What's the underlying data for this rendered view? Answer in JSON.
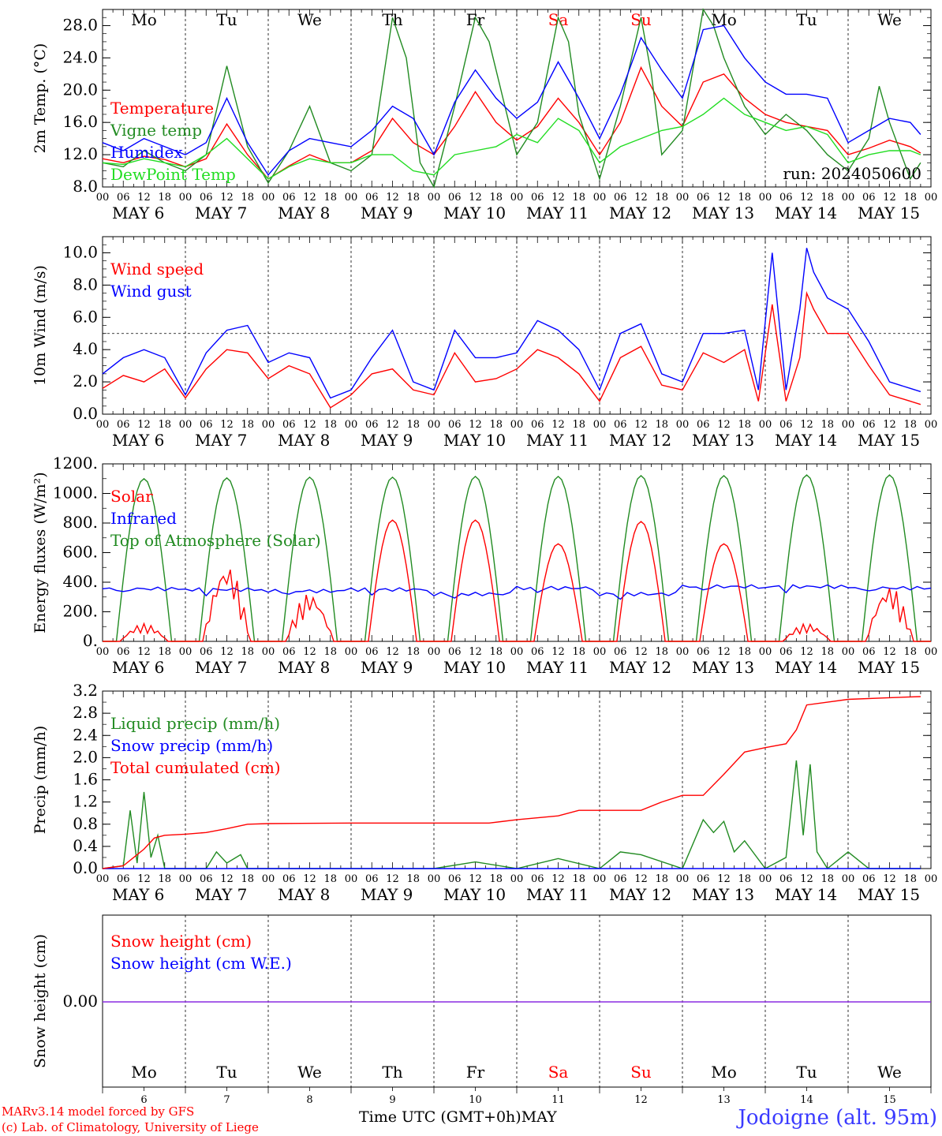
{
  "footer": {
    "model_line": "MARv3.14 model forced by GFS",
    "copyright_line": "(c) Lab. of Climatology, University of Liege",
    "time_label": "Time UTC (GMT+0h)",
    "month_label": "MAY",
    "station": "Jodoigne (alt. 95m)"
  },
  "colors": {
    "red": "#ff0000",
    "dark_green": "#228b22",
    "blue": "#0000ff",
    "light_green": "#22dd22",
    "purple": "#8a2be2",
    "weekend": "#ff0000",
    "text": "#000000"
  },
  "chart_data": [
    {
      "type": "line",
      "title": "",
      "run": "run: 2024050600",
      "ylabel": "2m Temp. (°C)",
      "ylim": [
        8,
        30
      ],
      "yticks": [
        "8.0",
        "12.0",
        "16.0",
        "20.0",
        "24.0",
        "28.0"
      ],
      "x_hour_ticks": [
        "00",
        "06",
        "12",
        "18"
      ],
      "x_date_labels": [
        "MAY  6",
        "MAY  7",
        "MAY  8",
        "MAY  9",
        "MAY 10",
        "MAY 11",
        "MAY 12",
        "MAY 13",
        "MAY 14",
        "MAY 15"
      ],
      "day_labels": [
        {
          "label": "Mo",
          "weekend": false
        },
        {
          "label": "Tu",
          "weekend": false
        },
        {
          "label": "We",
          "weekend": false
        },
        {
          "label": "Th",
          "weekend": false
        },
        {
          "label": "Fr",
          "weekend": false
        },
        {
          "label": "Sa",
          "weekend": true
        },
        {
          "label": "Su",
          "weekend": true
        },
        {
          "label": "Mo",
          "weekend": false
        },
        {
          "label": "Tu",
          "weekend": false
        },
        {
          "label": "We",
          "weekend": false
        }
      ],
      "grid": "vertical dashed at day boundaries",
      "series": [
        {
          "name": "Temperature",
          "color": "#ff0000",
          "x": [
            0,
            6,
            12,
            18,
            24,
            30,
            36,
            42,
            48,
            54,
            60,
            66,
            72,
            78,
            84,
            90,
            96,
            102,
            108,
            114,
            120,
            126,
            132,
            138,
            144,
            150,
            156,
            162,
            168,
            174,
            180,
            186,
            192,
            198,
            204,
            210,
            216,
            222,
            228,
            234,
            237
          ],
          "y": [
            11.5,
            11.0,
            11.8,
            11.4,
            10.5,
            11.5,
            15.8,
            12.0,
            9.0,
            10.6,
            12.0,
            11.0,
            11.0,
            12.5,
            16.5,
            13.5,
            12.0,
            15.5,
            19.8,
            16.0,
            13.8,
            15.5,
            19.0,
            16.0,
            12.0,
            16.0,
            22.8,
            18.0,
            15.5,
            21.0,
            22.0,
            19.0,
            17.0,
            16.0,
            15.5,
            15.0,
            12.0,
            12.8,
            13.8,
            13.0,
            12.2
          ]
        },
        {
          "name": "Vigne temp",
          "color": "#228b22",
          "x": [
            0,
            6,
            12,
            18,
            24,
            30,
            36,
            42,
            48,
            54,
            60,
            66,
            72,
            78,
            84,
            88,
            92,
            96,
            102,
            108,
            112,
            120,
            126,
            132,
            135,
            138,
            144,
            150,
            156,
            159,
            162,
            168,
            174,
            177,
            180,
            186,
            192,
            198,
            204,
            210,
            216,
            222,
            225,
            228,
            234,
            237
          ],
          "y": [
            11.0,
            10.5,
            12.5,
            11.0,
            10.0,
            12.0,
            23.0,
            13.0,
            8.5,
            12.5,
            18.0,
            11.0,
            10.0,
            12.0,
            29.0,
            24.0,
            11.0,
            8.0,
            18.0,
            29.0,
            26.0,
            12.0,
            16.0,
            29.0,
            26.0,
            17.0,
            9.0,
            18.0,
            29.0,
            22.0,
            12.0,
            15.0,
            30.0,
            28.0,
            24.0,
            18.0,
            14.5,
            17.0,
            15.0,
            12.0,
            10.0,
            14.0,
            20.5,
            16.0,
            9.0,
            11.0
          ]
        },
        {
          "name": "Humidex",
          "color": "#0000ff",
          "x": [
            0,
            6,
            12,
            18,
            24,
            30,
            36,
            42,
            48,
            54,
            60,
            66,
            72,
            78,
            84,
            90,
            96,
            102,
            108,
            114,
            120,
            126,
            132,
            138,
            144,
            150,
            156,
            162,
            168,
            174,
            180,
            186,
            192,
            198,
            204,
            210,
            216,
            222,
            228,
            234,
            237
          ],
          "y": [
            13.5,
            12.5,
            14.0,
            13.0,
            12.0,
            13.5,
            19.0,
            13.5,
            9.5,
            12.5,
            14.0,
            13.5,
            13.0,
            15.0,
            18.0,
            16.5,
            12.0,
            18.5,
            22.5,
            19.0,
            16.5,
            18.5,
            23.5,
            19.0,
            14.0,
            19.5,
            26.5,
            22.5,
            19.0,
            27.5,
            28.0,
            24.0,
            21.0,
            19.5,
            19.5,
            19.0,
            13.5,
            15.0,
            16.5,
            16.0,
            14.5
          ]
        },
        {
          "name": "DewPoint Temp",
          "color": "#22dd22",
          "x": [
            0,
            6,
            12,
            18,
            24,
            30,
            36,
            42,
            48,
            54,
            60,
            66,
            72,
            78,
            84,
            90,
            96,
            102,
            108,
            114,
            120,
            126,
            132,
            138,
            144,
            150,
            156,
            162,
            168,
            174,
            180,
            186,
            192,
            198,
            204,
            210,
            216,
            222,
            228,
            234,
            237
          ],
          "y": [
            11.0,
            10.8,
            11.5,
            11.0,
            10.5,
            12.0,
            14.0,
            11.5,
            9.0,
            10.5,
            11.5,
            11.0,
            11.0,
            12.0,
            12.0,
            10.0,
            9.5,
            12.0,
            12.5,
            13.0,
            14.5,
            13.5,
            16.5,
            15.0,
            11.0,
            13.0,
            14.0,
            15.0,
            15.5,
            17.0,
            19.0,
            17.0,
            16.0,
            15.0,
            15.5,
            14.5,
            11.0,
            12.0,
            12.5,
            12.5,
            12.0
          ]
        }
      ]
    },
    {
      "type": "line",
      "title": "",
      "ylabel": "10m Wind (m/s)",
      "ylim": [
        0,
        11
      ],
      "yticks": [
        "0.0",
        "2.0",
        "4.0",
        "6.0",
        "8.0",
        "10.0"
      ],
      "x_date_labels": [
        "MAY  6",
        "MAY  7",
        "MAY  8",
        "MAY  9",
        "MAY 10",
        "MAY 11",
        "MAY 12",
        "MAY 13",
        "MAY 14",
        "MAY 15"
      ],
      "hline": 5.0,
      "series": [
        {
          "name": "Wind speed",
          "color": "#ff0000",
          "x": [
            0,
            6,
            12,
            18,
            24,
            30,
            36,
            42,
            48,
            54,
            60,
            66,
            72,
            78,
            84,
            90,
            96,
            102,
            108,
            114,
            120,
            126,
            132,
            138,
            144,
            150,
            156,
            162,
            168,
            174,
            180,
            186,
            190,
            194,
            198,
            202,
            204,
            206,
            210,
            216,
            222,
            228,
            234,
            237
          ],
          "y": [
            1.6,
            2.4,
            2.0,
            2.8,
            1.0,
            2.8,
            4.0,
            3.8,
            2.2,
            3.0,
            2.5,
            0.4,
            1.2,
            2.5,
            2.8,
            1.5,
            1.2,
            3.8,
            2.0,
            2.2,
            2.8,
            4.0,
            3.5,
            2.5,
            0.8,
            3.5,
            4.2,
            1.8,
            1.5,
            3.8,
            3.2,
            4.0,
            0.8,
            6.8,
            0.8,
            3.5,
            7.5,
            6.5,
            5.0,
            5.0,
            3.0,
            1.2,
            0.8,
            0.6
          ]
        },
        {
          "name": "Wind gust",
          "color": "#0000ff",
          "x": [
            0,
            6,
            12,
            18,
            24,
            30,
            36,
            42,
            48,
            54,
            60,
            66,
            72,
            78,
            84,
            90,
            96,
            102,
            108,
            114,
            120,
            126,
            132,
            138,
            144,
            150,
            156,
            162,
            168,
            174,
            180,
            186,
            190,
            194,
            198,
            202,
            204,
            206,
            210,
            216,
            222,
            228,
            234,
            237
          ],
          "y": [
            2.5,
            3.5,
            4.0,
            3.5,
            1.2,
            3.8,
            5.2,
            5.5,
            3.2,
            3.8,
            3.5,
            1.0,
            1.5,
            3.5,
            5.2,
            2.0,
            1.5,
            5.2,
            3.5,
            3.5,
            3.8,
            5.8,
            5.2,
            4.0,
            1.5,
            5.0,
            5.6,
            2.5,
            2.0,
            5.0,
            5.0,
            5.2,
            1.5,
            10.0,
            1.5,
            6.5,
            10.3,
            8.8,
            7.2,
            6.5,
            4.5,
            2.0,
            1.6,
            1.4
          ]
        }
      ]
    },
    {
      "type": "line",
      "title": "",
      "ylabel": "Energy fluxes (W/m²)",
      "ylim": [
        0,
        1200
      ],
      "yticks": [
        "0.",
        "200.",
        "400.",
        "600.",
        "800.",
        "1000.",
        "1200."
      ],
      "x_date_labels": [
        "MAY  6",
        "MAY  7",
        "MAY  8",
        "MAY  9",
        "MAY 10",
        "MAY 11",
        "MAY 12",
        "MAY 13",
        "MAY 14",
        "MAY 15"
      ],
      "series": [
        {
          "name": "Solar",
          "color": "#ff0000",
          "daily_peak": [
            120,
            530,
            330,
            820,
            820,
            660,
            810,
            660,
            120,
            380
          ]
        },
        {
          "name": "Infrared",
          "color": "#0000ff",
          "daily_mean": [
            355,
            350,
            340,
            350,
            320,
            360,
            320,
            370,
            370,
            360
          ]
        },
        {
          "name": "Top of Atmosphere (Solar)",
          "color": "#228b22",
          "daily_peak": [
            1100,
            1105,
            1110,
            1110,
            1115,
            1115,
            1120,
            1120,
            1125,
            1125
          ],
          "day_start_h": 4,
          "day_end_h": 20
        }
      ]
    },
    {
      "type": "line",
      "title": "",
      "ylabel": "Precip (mm/h)",
      "ylim": [
        0,
        3.2
      ],
      "yticks": [
        "0.0",
        "0.4",
        "0.8",
        "1.2",
        "1.6",
        "2.0",
        "2.4",
        "2.8",
        "3.2"
      ],
      "x_date_labels": [
        "MAY  6",
        "MAY  7",
        "MAY  8",
        "MAY  9",
        "MAY 10",
        "MAY 11",
        "MAY 12",
        "MAY 13",
        "MAY 14",
        "MAY 15"
      ],
      "series": [
        {
          "name": "Liquid precip (mm/h)",
          "color": "#228b22",
          "x": [
            0,
            6,
            8,
            10,
            12,
            14,
            16,
            18,
            24,
            30,
            33,
            36,
            40,
            42,
            48,
            96,
            108,
            120,
            132,
            144,
            150,
            156,
            168,
            174,
            177,
            180,
            183,
            186,
            192,
            198,
            201,
            203,
            205,
            207,
            210,
            216,
            222,
            234,
            237
          ],
          "y": [
            0,
            0.05,
            1.05,
            0.1,
            1.38,
            0.2,
            0.6,
            0,
            0,
            0,
            0.3,
            0.1,
            0.25,
            0,
            0,
            0,
            0.12,
            0,
            0.18,
            0,
            0.3,
            0.25,
            0,
            0.88,
            0.65,
            0.85,
            0.3,
            0.5,
            0,
            0.2,
            1.95,
            0.6,
            1.88,
            0.3,
            0,
            0.3,
            0,
            0,
            0
          ]
        },
        {
          "name": "Snow precip (mm/h)",
          "color": "#0000ff",
          "x": [
            0,
            237
          ],
          "y": [
            0,
            0
          ]
        },
        {
          "name": "Total cumulated (cm)",
          "color": "#ff0000",
          "x": [
            0,
            6,
            9,
            12,
            15,
            18,
            24,
            30,
            36,
            42,
            48,
            72,
            96,
            112,
            120,
            132,
            138,
            150,
            156,
            162,
            168,
            174,
            180,
            186,
            192,
            198,
            201,
            204,
            210,
            216,
            228,
            237
          ],
          "y": [
            0,
            0.05,
            0.2,
            0.35,
            0.55,
            0.6,
            0.62,
            0.65,
            0.72,
            0.8,
            0.81,
            0.82,
            0.82,
            0.82,
            0.88,
            0.95,
            1.05,
            1.05,
            1.05,
            1.2,
            1.32,
            1.32,
            1.7,
            2.1,
            2.18,
            2.25,
            2.5,
            2.95,
            3.0,
            3.05,
            3.08,
            3.1
          ]
        }
      ]
    },
    {
      "type": "line",
      "title": "",
      "ylabel": "Snow height (cm)",
      "yticks": [
        "0.00"
      ],
      "x_day_numbers": [
        "6",
        "7",
        "8",
        "9",
        "10",
        "11",
        "12",
        "13",
        "14",
        "15"
      ],
      "day_labels": [
        {
          "label": "Mo",
          "weekend": false
        },
        {
          "label": "Tu",
          "weekend": false
        },
        {
          "label": "We",
          "weekend": false
        },
        {
          "label": "Th",
          "weekend": false
        },
        {
          "label": "Fr",
          "weekend": false
        },
        {
          "label": "Sa",
          "weekend": true
        },
        {
          "label": "Su",
          "weekend": true
        },
        {
          "label": "Mo",
          "weekend": false
        },
        {
          "label": "Tu",
          "weekend": false
        },
        {
          "label": "We",
          "weekend": false
        }
      ],
      "series": [
        {
          "name": "Snow height (cm)",
          "color": "#ff0000",
          "x": [
            0,
            237
          ],
          "y": [
            0,
            0
          ]
        },
        {
          "name": "Snow height (cm W.E.)",
          "color": "#0000ff",
          "x": [
            0,
            237
          ],
          "y": [
            0,
            0
          ]
        }
      ]
    }
  ]
}
